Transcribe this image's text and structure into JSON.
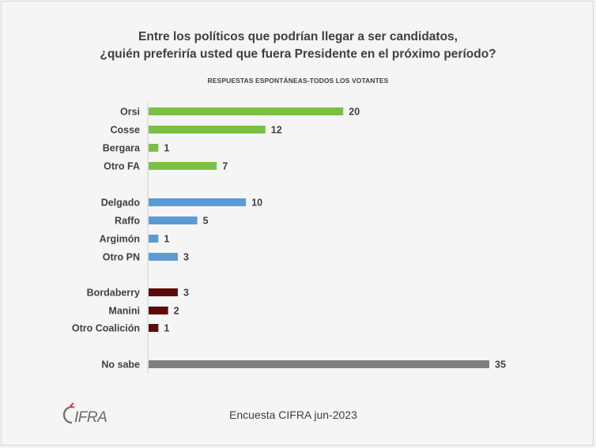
{
  "chart_data": {
    "type": "bar",
    "orientation": "horizontal",
    "title": "Entre los políticos que podrían llegar a ser candidatos,",
    "title_line2": "¿quién preferiría usted que fuera Presidente en el próximo período?",
    "subtitle": "RESPUESTAS ESPONTÁNEAS-TODOS LOS VOTANTES",
    "categories": [
      "Orsi",
      "Cosse",
      "Bergara",
      "Otro FA",
      "Delgado",
      "Raffo",
      "Argimón",
      "Otro PN",
      "Bordaberry",
      "Manini",
      "Otro Coalición",
      "No sabe"
    ],
    "values": [
      20,
      12,
      1,
      7,
      10,
      5,
      1,
      3,
      3,
      2,
      1,
      35
    ],
    "bar_colors": [
      "#7ac143",
      "#7ac143",
      "#7ac143",
      "#7ac143",
      "#5b9bd5",
      "#5b9bd5",
      "#5b9bd5",
      "#5b9bd5",
      "#5c0a0a",
      "#5c0a0a",
      "#5c0a0a",
      "#7f7f7f"
    ],
    "xlim": [
      0,
      35
    ],
    "grid": false,
    "legend": "none"
  },
  "footer": "Encuesta CIFRA jun-2023",
  "logo_text": "CIFRA"
}
